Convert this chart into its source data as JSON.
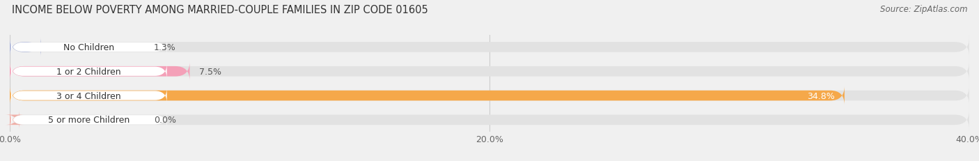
{
  "title": "INCOME BELOW POVERTY AMONG MARRIED-COUPLE FAMILIES IN ZIP CODE 01605",
  "source": "Source: ZipAtlas.com",
  "categories": [
    "No Children",
    "1 or 2 Children",
    "3 or 4 Children",
    "5 or more Children"
  ],
  "values": [
    1.3,
    7.5,
    34.8,
    0.0
  ],
  "bar_colors": [
    "#abb4d8",
    "#f4a0b8",
    "#f5a84a",
    "#f0b0a8"
  ],
  "xlim": [
    0,
    40
  ],
  "xticks": [
    0.0,
    20.0,
    40.0
  ],
  "xtick_labels": [
    "0.0%",
    "20.0%",
    "40.0%"
  ],
  "background_color": "#f0f0f0",
  "bar_background": "#e2e2e2",
  "title_fontsize": 10.5,
  "source_fontsize": 8.5,
  "label_fontsize": 9,
  "tick_fontsize": 9,
  "category_fontsize": 9,
  "bar_height": 0.42,
  "label_pill_color": "#ffffff",
  "value_label_color_inside": "#ffffff",
  "value_label_color_outside": "#555555"
}
